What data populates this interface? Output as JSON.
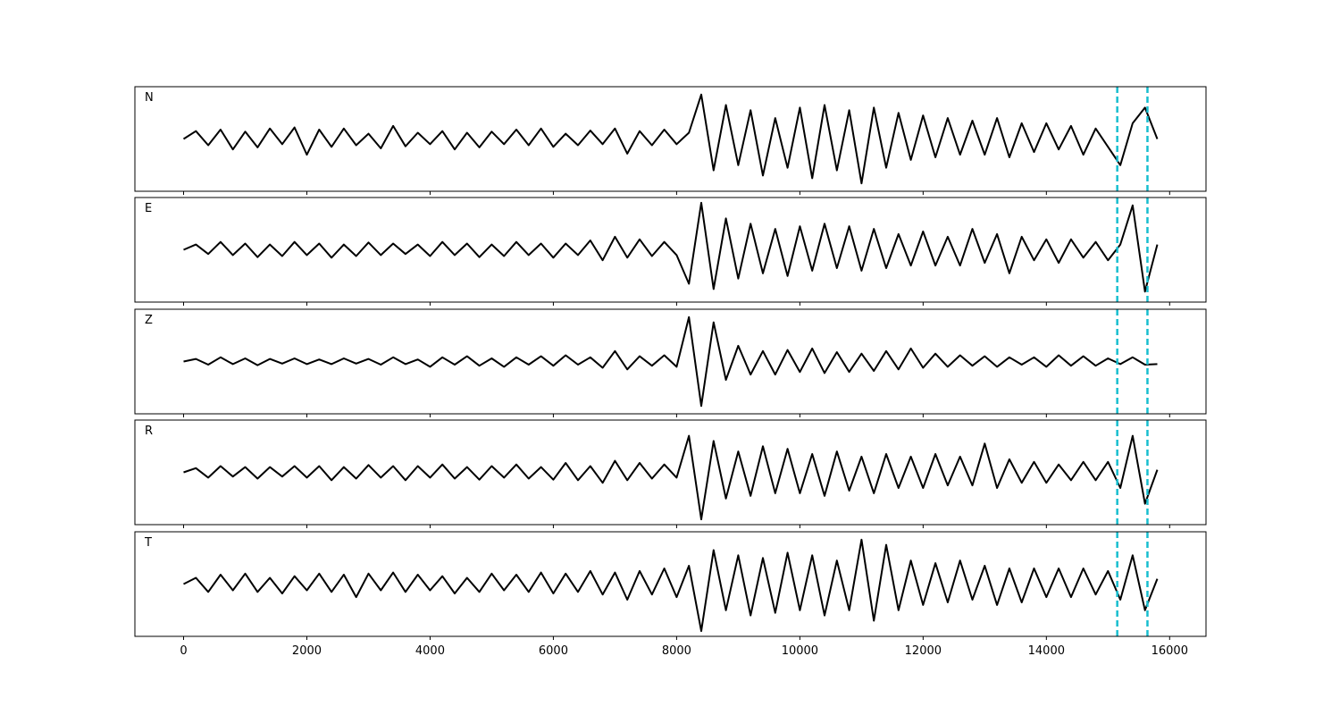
{
  "chart_data": [
    {
      "type": "line",
      "label": "N",
      "color": "#000000",
      "xlim": [
        -790,
        16590
      ],
      "ylim": [
        -1,
        1
      ],
      "vlines": [
        15150,
        15640
      ],
      "vline_color": "#17becf",
      "x": [
        0,
        200,
        400,
        600,
        800,
        1000,
        1200,
        1400,
        1600,
        1800,
        2000,
        2200,
        2400,
        2600,
        2800,
        3000,
        3200,
        3400,
        3600,
        3800,
        4000,
        4200,
        4400,
        4600,
        4800,
        5000,
        5200,
        5400,
        5600,
        5800,
        6000,
        6200,
        6400,
        6600,
        6800,
        7000,
        7200,
        7400,
        7600,
        7800,
        8000,
        8200,
        8400,
        8600,
        8800,
        9000,
        9200,
        9400,
        9600,
        9800,
        10000,
        10200,
        10400,
        10600,
        10800,
        11000,
        11200,
        11400,
        11600,
        11800,
        12000,
        12200,
        12400,
        12600,
        12800,
        13000,
        13200,
        13400,
        13600,
        13800,
        14000,
        14200,
        14400,
        14600,
        14800,
        15000,
        15200,
        15400,
        15600,
        15800
      ],
      "values": [
        0.0,
        0.15,
        -0.12,
        0.18,
        -0.2,
        0.14,
        -0.16,
        0.2,
        -0.1,
        0.22,
        -0.3,
        0.18,
        -0.15,
        0.2,
        -0.12,
        0.1,
        -0.18,
        0.25,
        -0.14,
        0.12,
        -0.1,
        0.15,
        -0.2,
        0.12,
        -0.16,
        0.14,
        -0.1,
        0.18,
        -0.12,
        0.2,
        -0.15,
        0.1,
        -0.12,
        0.16,
        -0.1,
        0.2,
        -0.28,
        0.15,
        -0.12,
        0.18,
        -0.1,
        0.12,
        0.85,
        -0.6,
        0.65,
        -0.5,
        0.55,
        -0.7,
        0.4,
        -0.55,
        0.6,
        -0.75,
        0.65,
        -0.6,
        0.55,
        -0.85,
        0.6,
        -0.55,
        0.5,
        -0.4,
        0.45,
        -0.35,
        0.4,
        -0.3,
        0.35,
        -0.3,
        0.4,
        -0.35,
        0.3,
        -0.25,
        0.3,
        -0.2,
        0.25,
        -0.3,
        0.2,
        -0.15,
        -0.5,
        0.3,
        0.6,
        0.0
      ]
    },
    {
      "type": "line",
      "label": "E",
      "color": "#000000",
      "xlim": [
        -790,
        16590
      ],
      "ylim": [
        -1,
        1
      ],
      "vlines": [
        15150,
        15640
      ],
      "vline_color": "#17becf",
      "x": [
        0,
        200,
        400,
        600,
        800,
        1000,
        1200,
        1400,
        1600,
        1800,
        2000,
        2200,
        2400,
        2600,
        2800,
        3000,
        3200,
        3400,
        3600,
        3800,
        4000,
        4200,
        4400,
        4600,
        4800,
        5000,
        5200,
        5400,
        5600,
        5800,
        6000,
        6200,
        6400,
        6600,
        6800,
        7000,
        7200,
        7400,
        7600,
        7800,
        8000,
        8200,
        8400,
        8600,
        8800,
        9000,
        9200,
        9400,
        9600,
        9800,
        10000,
        10200,
        10400,
        10600,
        10800,
        11000,
        11200,
        11400,
        11600,
        11800,
        12000,
        12200,
        12400,
        12600,
        12800,
        13000,
        13200,
        13400,
        13600,
        13800,
        14000,
        14200,
        14400,
        14600,
        14800,
        15000,
        15200,
        15400,
        15600,
        15800
      ],
      "values": [
        0.0,
        0.1,
        -0.08,
        0.15,
        -0.1,
        0.12,
        -0.14,
        0.1,
        -0.12,
        0.15,
        -0.1,
        0.12,
        -0.15,
        0.1,
        -0.12,
        0.14,
        -0.1,
        0.12,
        -0.08,
        0.1,
        -0.12,
        0.15,
        -0.1,
        0.12,
        -0.14,
        0.1,
        -0.12,
        0.15,
        -0.1,
        0.12,
        -0.15,
        0.12,
        -0.1,
        0.18,
        -0.2,
        0.25,
        -0.15,
        0.2,
        -0.12,
        0.15,
        -0.1,
        -0.65,
        0.9,
        -0.75,
        0.6,
        -0.55,
        0.5,
        -0.45,
        0.4,
        -0.5,
        0.45,
        -0.4,
        0.5,
        -0.35,
        0.45,
        -0.4,
        0.4,
        -0.35,
        0.3,
        -0.3,
        0.35,
        -0.3,
        0.25,
        -0.3,
        0.4,
        -0.25,
        0.3,
        -0.45,
        0.25,
        -0.2,
        0.2,
        -0.25,
        0.2,
        -0.15,
        0.15,
        -0.2,
        0.1,
        0.85,
        -0.8,
        0.1
      ]
    },
    {
      "type": "line",
      "label": "Z",
      "color": "#000000",
      "xlim": [
        -790,
        16590
      ],
      "ylim": [
        -1,
        1
      ],
      "vlines": [
        15150,
        15640
      ],
      "vline_color": "#17becf",
      "x": [
        0,
        200,
        400,
        600,
        800,
        1000,
        1200,
        1400,
        1600,
        1800,
        2000,
        2200,
        2400,
        2600,
        2800,
        3000,
        3200,
        3400,
        3600,
        3800,
        4000,
        4200,
        4400,
        4600,
        4800,
        5000,
        5200,
        5400,
        5600,
        5800,
        6000,
        6200,
        6400,
        6600,
        6800,
        7000,
        7200,
        7400,
        7600,
        7800,
        8000,
        8200,
        8400,
        8600,
        8800,
        9000,
        9200,
        9400,
        9600,
        9800,
        10000,
        10200,
        10400,
        10600,
        10800,
        11000,
        11200,
        11400,
        11600,
        11800,
        12000,
        12200,
        12400,
        12600,
        12800,
        13000,
        13200,
        13400,
        13600,
        13800,
        14000,
        14200,
        14400,
        14600,
        14800,
        15000,
        15200,
        15400,
        15600,
        15800
      ],
      "values": [
        0.0,
        0.05,
        -0.06,
        0.08,
        -0.05,
        0.06,
        -0.07,
        0.05,
        -0.04,
        0.06,
        -0.05,
        0.04,
        -0.05,
        0.06,
        -0.04,
        0.05,
        -0.06,
        0.08,
        -0.05,
        0.04,
        -0.1,
        0.08,
        -0.06,
        0.1,
        -0.08,
        0.06,
        -0.1,
        0.08,
        -0.06,
        0.1,
        -0.08,
        0.12,
        -0.06,
        0.08,
        -0.12,
        0.2,
        -0.15,
        0.1,
        -0.08,
        0.12,
        -0.1,
        0.85,
        -0.85,
        0.75,
        -0.35,
        0.3,
        -0.25,
        0.2,
        -0.25,
        0.22,
        -0.2,
        0.25,
        -0.22,
        0.18,
        -0.2,
        0.15,
        -0.18,
        0.2,
        -0.15,
        0.25,
        -0.12,
        0.15,
        -0.1,
        0.12,
        -0.08,
        0.1,
        -0.1,
        0.08,
        -0.06,
        0.08,
        -0.1,
        0.12,
        -0.08,
        0.1,
        -0.08,
        0.06,
        -0.05,
        0.08,
        -0.06,
        -0.05
      ]
    },
    {
      "type": "line",
      "label": "R",
      "color": "#000000",
      "xlim": [
        -790,
        16590
      ],
      "ylim": [
        -1,
        1
      ],
      "vlines": [
        15150,
        15640
      ],
      "vline_color": "#17becf",
      "x": [
        0,
        200,
        400,
        600,
        800,
        1000,
        1200,
        1400,
        1600,
        1800,
        2000,
        2200,
        2400,
        2600,
        2800,
        3000,
        3200,
        3400,
        3600,
        3800,
        4000,
        4200,
        4400,
        4600,
        4800,
        5000,
        5200,
        5400,
        5600,
        5800,
        6000,
        6200,
        6400,
        6600,
        6800,
        7000,
        7200,
        7400,
        7600,
        7800,
        8000,
        8200,
        8400,
        8600,
        8800,
        9000,
        9200,
        9400,
        9600,
        9800,
        10000,
        10200,
        10400,
        10600,
        10800,
        11000,
        11200,
        11400,
        11600,
        11800,
        12000,
        12200,
        12400,
        12600,
        12800,
        13000,
        13200,
        13400,
        13600,
        13800,
        14000,
        14200,
        14400,
        14600,
        14800,
        15000,
        15200,
        15400,
        15600,
        15800
      ],
      "values": [
        0.0,
        0.08,
        -0.1,
        0.12,
        -0.08,
        0.1,
        -0.12,
        0.1,
        -0.08,
        0.12,
        -0.1,
        0.12,
        -0.15,
        0.1,
        -0.12,
        0.14,
        -0.1,
        0.12,
        -0.15,
        0.12,
        -0.1,
        0.15,
        -0.12,
        0.1,
        -0.14,
        0.12,
        -0.1,
        0.15,
        -0.12,
        0.1,
        -0.14,
        0.18,
        -0.15,
        0.12,
        -0.2,
        0.22,
        -0.15,
        0.18,
        -0.12,
        0.15,
        -0.1,
        0.7,
        -0.9,
        0.6,
        -0.5,
        0.4,
        -0.45,
        0.5,
        -0.4,
        0.45,
        -0.4,
        0.35,
        -0.45,
        0.4,
        -0.35,
        0.3,
        -0.4,
        0.35,
        -0.3,
        0.3,
        -0.3,
        0.35,
        -0.25,
        0.3,
        -0.25,
        0.55,
        -0.3,
        0.25,
        -0.2,
        0.2,
        -0.2,
        0.15,
        -0.15,
        0.2,
        -0.15,
        0.2,
        -0.3,
        0.7,
        -0.6,
        0.05
      ]
    },
    {
      "type": "line",
      "label": "T",
      "color": "#000000",
      "xlim": [
        -790,
        16590
      ],
      "ylim": [
        -1,
        1
      ],
      "vlines": [
        15150,
        15640
      ],
      "vline_color": "#17becf",
      "xticks": [
        0,
        2000,
        4000,
        6000,
        8000,
        10000,
        12000,
        14000,
        16000
      ],
      "x": [
        0,
        200,
        400,
        600,
        800,
        1000,
        1200,
        1400,
        1600,
        1800,
        2000,
        2200,
        2400,
        2600,
        2800,
        3000,
        3200,
        3400,
        3600,
        3800,
        4000,
        4200,
        4400,
        4600,
        4800,
        5000,
        5200,
        5400,
        5600,
        5800,
        6000,
        6200,
        6400,
        6600,
        6800,
        7000,
        7200,
        7400,
        7600,
        7800,
        8000,
        8200,
        8400,
        8600,
        8800,
        9000,
        9200,
        9400,
        9600,
        9800,
        10000,
        10200,
        10400,
        10600,
        10800,
        11000,
        11200,
        11400,
        11600,
        11800,
        12000,
        12200,
        12400,
        12600,
        12800,
        13000,
        13200,
        13400,
        13600,
        13800,
        14000,
        14200,
        14400,
        14600,
        14800,
        15000,
        15200,
        15400,
        15600,
        15800
      ],
      "values": [
        0.0,
        0.12,
        -0.15,
        0.18,
        -0.12,
        0.2,
        -0.15,
        0.12,
        -0.18,
        0.15,
        -0.12,
        0.2,
        -0.15,
        0.18,
        -0.25,
        0.2,
        -0.12,
        0.22,
        -0.15,
        0.18,
        -0.12,
        0.15,
        -0.18,
        0.12,
        -0.15,
        0.2,
        -0.12,
        0.18,
        -0.15,
        0.22,
        -0.18,
        0.2,
        -0.15,
        0.25,
        -0.2,
        0.22,
        -0.3,
        0.25,
        -0.2,
        0.3,
        -0.25,
        0.35,
        -0.9,
        0.65,
        -0.5,
        0.55,
        -0.6,
        0.5,
        -0.55,
        0.6,
        -0.5,
        0.55,
        -0.6,
        0.45,
        -0.5,
        0.85,
        -0.7,
        0.75,
        -0.5,
        0.45,
        -0.4,
        0.4,
        -0.35,
        0.45,
        -0.3,
        0.35,
        -0.4,
        0.3,
        -0.35,
        0.3,
        -0.25,
        0.3,
        -0.25,
        0.3,
        -0.2,
        0.25,
        -0.3,
        0.55,
        -0.5,
        0.1
      ]
    }
  ]
}
